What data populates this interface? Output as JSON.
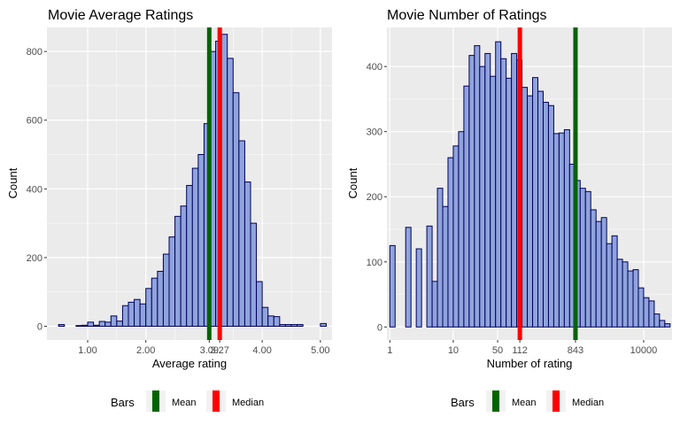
{
  "colors": {
    "panel_bg": "#ebebeb",
    "grid_major": "#ffffff",
    "bar_fill": "#8fa3dc",
    "bar_stroke": "#00005a",
    "mean": "#006400",
    "median": "#ff0000",
    "tick_text": "#4d4d4d"
  },
  "chart_data": [
    {
      "type": "bar",
      "title": "Movie Average Ratings",
      "xlabel": "Average rating",
      "ylabel": "Count",
      "xlim": [
        0.3,
        5.2
      ],
      "ylim": [
        -40,
        870
      ],
      "x_ticks": [
        1,
        2,
        3.09,
        3.27,
        4,
        5
      ],
      "x_tick_labels": [
        "1.00",
        "2.00",
        "3.09",
        "3.27",
        "4.00",
        "5.00"
      ],
      "y_ticks": [
        0,
        200,
        400,
        600,
        800
      ],
      "y_tick_labels": [
        "0",
        "200",
        "400",
        "600",
        "800"
      ],
      "bin_width": 0.1,
      "bins_start": [
        0.5,
        0.6,
        0.7,
        0.8,
        0.9,
        1.0,
        1.1,
        1.2,
        1.3,
        1.4,
        1.5,
        1.6,
        1.7,
        1.8,
        1.9,
        2.0,
        2.1,
        2.2,
        2.3,
        2.4,
        2.5,
        2.6,
        2.7,
        2.8,
        2.9,
        3.0,
        3.1,
        3.2,
        3.3,
        3.4,
        3.5,
        3.6,
        3.7,
        3.8,
        3.9,
        4.0,
        4.1,
        4.2,
        4.3,
        4.4,
        4.5,
        4.6,
        4.7,
        4.8,
        4.9,
        5.0
      ],
      "counts": [
        5,
        0,
        0,
        2,
        3,
        12,
        3,
        14,
        12,
        30,
        15,
        60,
        70,
        78,
        65,
        110,
        140,
        160,
        210,
        260,
        320,
        350,
        410,
        460,
        500,
        590,
        800,
        830,
        850,
        780,
        680,
        540,
        420,
        300,
        130,
        55,
        30,
        28,
        5,
        5,
        5,
        5,
        0,
        0,
        0,
        8
      ],
      "mean": 3.09,
      "median": 3.27
    },
    {
      "type": "bar",
      "title": "Movie Number of Ratings",
      "xlabel": "Number of rating",
      "ylabel": "Count",
      "x_scale": "log10",
      "xlim": [
        0.9,
        28000
      ],
      "ylim": [
        -20,
        460
      ],
      "x_ticks": [
        1,
        10,
        50,
        112,
        843,
        10000
      ],
      "x_tick_labels": [
        "1",
        "10",
        "50",
        "112",
        "843",
        "10000"
      ],
      "y_ticks": [
        0,
        100,
        200,
        300,
        400
      ],
      "y_tick_labels": [
        "0",
        "100",
        "200",
        "300",
        "400"
      ],
      "bin_width_log10": 0.0833,
      "bins_start_log10": [
        0.0,
        0.0833,
        0.1667,
        0.25,
        0.3333,
        0.4167,
        0.5,
        0.5833,
        0.6667,
        0.75,
        0.8333,
        0.9167,
        1.0,
        1.0833,
        1.1667,
        1.25,
        1.3333,
        1.4167,
        1.5,
        1.5833,
        1.6667,
        1.75,
        1.8333,
        1.9167,
        2.0,
        2.0833,
        2.1667,
        2.25,
        2.3333,
        2.4167,
        2.5,
        2.5833,
        2.6667,
        2.75,
        2.8333,
        2.9167,
        3.0,
        3.0833,
        3.1667,
        3.25,
        3.3333,
        3.4167,
        3.5,
        3.5833,
        3.6667,
        3.75,
        3.8333,
        3.9167,
        4.0,
        4.0833,
        4.1667,
        4.25,
        4.3333
      ],
      "counts": [
        125,
        0,
        0,
        153,
        0,
        120,
        0,
        155,
        70,
        213,
        185,
        260,
        278,
        300,
        370,
        417,
        432,
        400,
        420,
        385,
        438,
        412,
        382,
        420,
        410,
        368,
        355,
        383,
        362,
        345,
        340,
        297,
        298,
        303,
        250,
        225,
        213,
        208,
        180,
        162,
        168,
        128,
        140,
        104,
        100,
        86,
        88,
        60,
        45,
        40,
        20,
        10,
        5
      ],
      "mean": 843,
      "median": 112
    }
  ],
  "legend": {
    "title": "Bars",
    "items": [
      {
        "label": "Mean",
        "color": "#006400"
      },
      {
        "label": "Median",
        "color": "#ff0000"
      }
    ]
  }
}
